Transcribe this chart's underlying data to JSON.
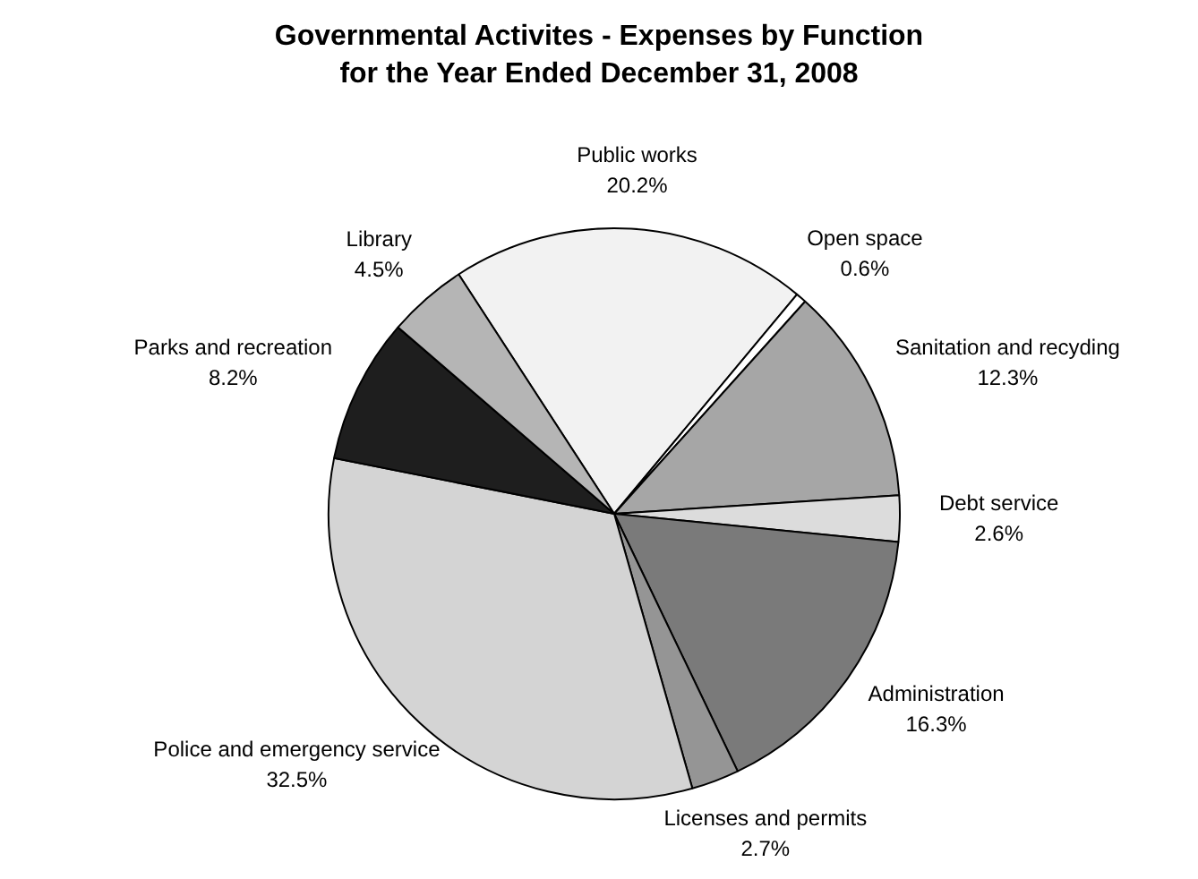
{
  "chart_data": {
    "type": "pie",
    "title": "Governmental Activites - Expenses by Function\nfor the Year Ended December 31, 2008",
    "categories": [
      "Public works",
      "Open space",
      "Sanitation and recyding",
      "Debt service",
      "Administration",
      "Licenses and permits",
      "Police and emergency service",
      "Parks and recreation",
      "Library"
    ],
    "values": [
      20.2,
      0.6,
      12.3,
      2.6,
      16.3,
      2.7,
      32.5,
      8.2,
      4.5
    ],
    "value_labels": [
      "20.2%",
      "0.6%",
      "12.3%",
      "2.6%",
      "16.3%",
      "2.7%",
      "32.5%",
      "8.2%",
      "4.5%"
    ],
    "colors": [
      "#f2f2f2",
      "#ffffff",
      "#a6a6a6",
      "#dcdcdc",
      "#7a7a7a",
      "#959595",
      "#d4d4d4",
      "#1e1e1e",
      "#b5b5b5"
    ],
    "legend": false
  }
}
